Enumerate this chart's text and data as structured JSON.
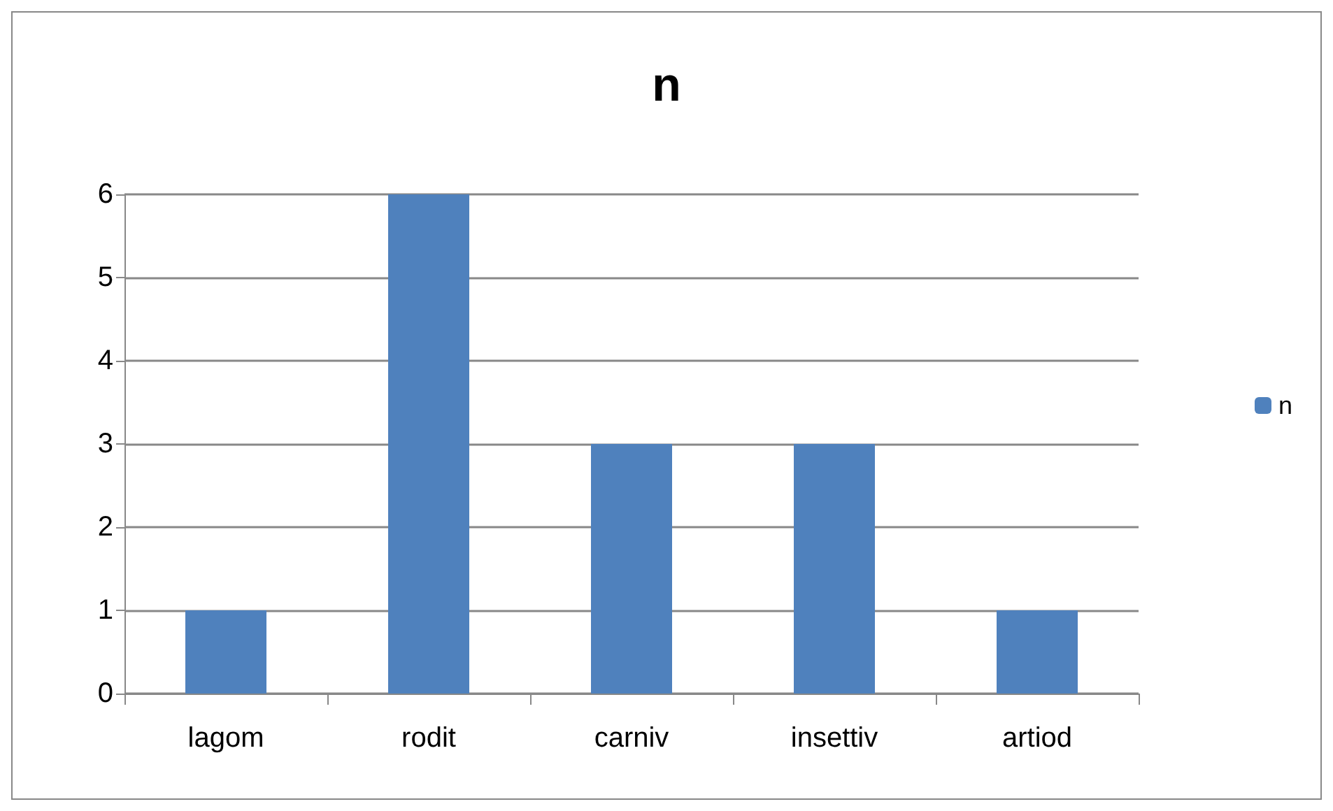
{
  "chart_data": {
    "type": "bar",
    "title": "n",
    "categories": [
      "lagom",
      "rodit",
      "carniv",
      "insettiv",
      "artiod"
    ],
    "series": [
      {
        "name": "n",
        "color": "#4f81bd",
        "values": [
          1,
          6,
          3,
          3,
          1
        ]
      }
    ],
    "ylim": [
      0,
      6
    ],
    "yticks": [
      0,
      1,
      2,
      3,
      4,
      5,
      6
    ],
    "grid": "y",
    "legend": "right"
  }
}
